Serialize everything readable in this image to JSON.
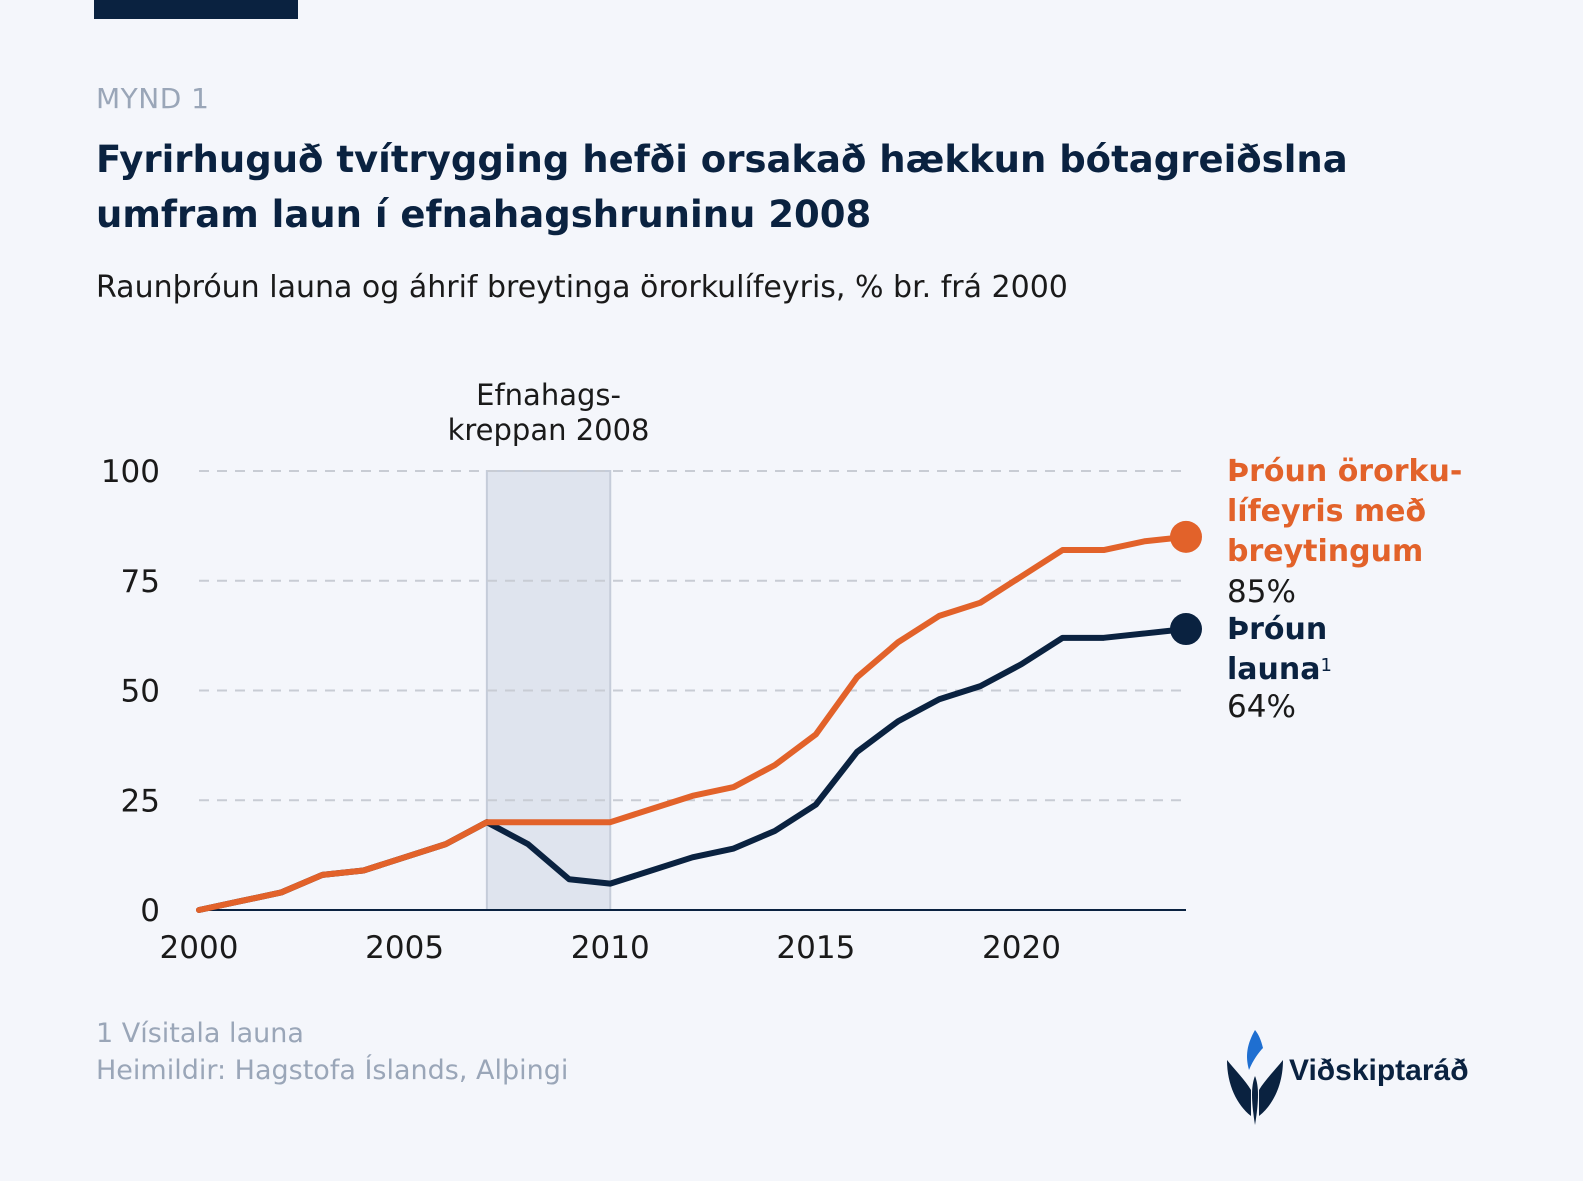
{
  "figure_label": "MYND 1",
  "title": "Fyrirhuguð tvítrygging hefði orsakað hækkun bótagreiðslna umfram laun í efnahagshruninu 2008",
  "subtitle": "Raunþróun launa og áhrif breytinga örorkulífeyris, % br. frá 2000",
  "colors": {
    "accent_orange": "#e2622a",
    "navy": "#0a2240",
    "shade": "#dfe4ee",
    "grid": "#c8ccd4"
  },
  "chart_data": {
    "type": "line",
    "x": [
      2000,
      2001,
      2002,
      2003,
      2004,
      2005,
      2006,
      2007,
      2008,
      2009,
      2010,
      2011,
      2012,
      2013,
      2014,
      2015,
      2016,
      2017,
      2018,
      2019,
      2020,
      2021,
      2022,
      2023,
      2024
    ],
    "series": [
      {
        "name": "Þróun örorkulífeyris með breytingum",
        "color": "#e2622a",
        "values": [
          0,
          2,
          4,
          8,
          9,
          12,
          15,
          20,
          20,
          20,
          20,
          23,
          26,
          28,
          33,
          40,
          53,
          61,
          67,
          70,
          76,
          82,
          82,
          84,
          85
        ]
      },
      {
        "name": "Þróun launa",
        "color": "#0a2240",
        "values": [
          0,
          2,
          4,
          8,
          9,
          12,
          15,
          20,
          15,
          7,
          6,
          9,
          12,
          14,
          18,
          24,
          36,
          43,
          48,
          51,
          56,
          62,
          62,
          63,
          64
        ]
      }
    ],
    "ylim": [
      0,
      100
    ],
    "xlim": [
      2000,
      2024
    ],
    "yticks": [
      0,
      25,
      50,
      75,
      100
    ],
    "xticks": [
      2000,
      2005,
      2010,
      2015,
      2020
    ],
    "grid": "horizontal dashed",
    "shaded_range": {
      "from": 2007,
      "to": 2010,
      "label_line1": "Efnahags-",
      "label_line2": "kreppan 2008"
    },
    "end_labels": {
      "orange_line1": "Þróun örorku-",
      "orange_line2": "lífeyris með",
      "orange_line3": "breytingum",
      "orange_value": "85%",
      "navy_line1": "Þróun",
      "navy_line2": "launa",
      "navy_footnote_mark": "1",
      "navy_value": "64%"
    }
  },
  "footnote": "1 Vísitala launa",
  "sources": "Heimildir: Hagstofa Íslands, Alþingi",
  "logo": {
    "icon": "vidskiptarad-leaf-logo",
    "text": "Viðskiptaráð"
  }
}
